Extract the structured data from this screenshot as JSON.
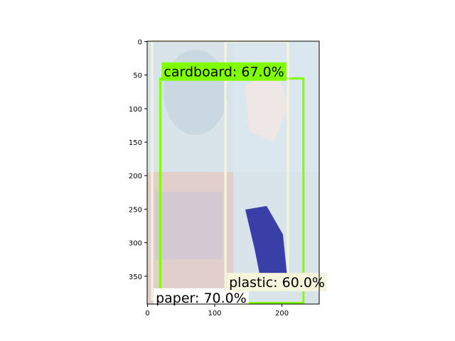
{
  "chart_data": {
    "type": "image-with-detections",
    "title": "",
    "xlabel": "",
    "ylabel": "",
    "xlim": [
      -0.5,
      255.5
    ],
    "ylim": [
      391.5,
      -0.5
    ],
    "xticks": [
      0,
      100,
      200
    ],
    "yticks": [
      0,
      50,
      100,
      150,
      200,
      250,
      300,
      350
    ],
    "grid": false,
    "image_quadrants": {
      "top_left": {
        "color": "#d9e4ea",
        "accent": "#c4d4de"
      },
      "top_right": {
        "color": "#dbe7ee",
        "accent": "#f1e6e4"
      },
      "bottom_left": {
        "color": "#e0cfcb",
        "accent": "#cfc4d4"
      },
      "bottom_right": {
        "color": "#d8e3ea",
        "accent": "#3a3fa8"
      }
    },
    "detections": [
      {
        "label": "cardboard: 67.0%",
        "x0": 19,
        "y0": 55,
        "x1": 232,
        "y1": 390,
        "color": "#80ff00",
        "label_bg": "#80ff00",
        "label_y": 31
      },
      {
        "label": "paper: 70.0%",
        "x0": 7,
        "y0": -1,
        "x1": 116,
        "y1": 385,
        "color": "#f5f5dc",
        "label_bg": "#ffffff",
        "label_y": 368
      },
      {
        "label": "plastic: 60.0%",
        "x0": 116,
        "y0": 0,
        "x1": 209,
        "y1": 355,
        "color": "#f5f5dc",
        "label_bg": "#f5f5dc",
        "label_y": 345
      }
    ]
  }
}
